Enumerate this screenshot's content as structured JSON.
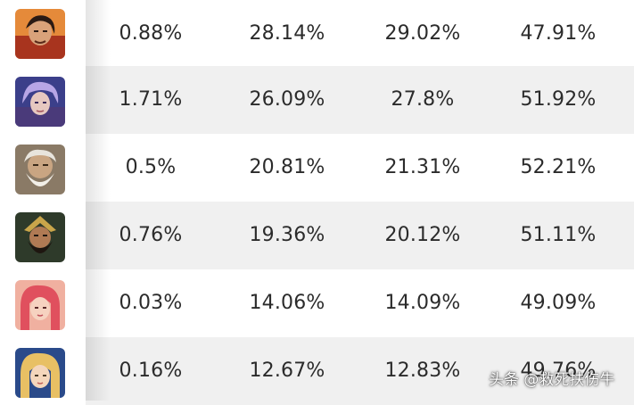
{
  "watermark": "头条 @救死扶伤牛",
  "rows": [
    {
      "avatar_icon": "hero-portrait-red-armor-icon",
      "accent": "#b5482a",
      "values": [
        "0.88%",
        "28.14%",
        "29.02%",
        "47.91%"
      ]
    },
    {
      "avatar_icon": "hero-portrait-purple-mage-icon",
      "accent": "#6b5fb0",
      "values": [
        "1.71%",
        "26.09%",
        "27.8%",
        "51.92%"
      ]
    },
    {
      "avatar_icon": "hero-portrait-white-beard-icon",
      "accent": "#b9b2a6",
      "values": [
        "0.5%",
        "20.81%",
        "21.31%",
        "52.21%"
      ]
    },
    {
      "avatar_icon": "hero-portrait-bearded-warrior-icon",
      "accent": "#6a5a2e",
      "values": [
        "0.76%",
        "19.36%",
        "20.12%",
        "51.11%"
      ]
    },
    {
      "avatar_icon": "hero-portrait-pink-hair-icon",
      "accent": "#e0667a",
      "values": [
        "0.03%",
        "14.06%",
        "14.09%",
        "49.09%"
      ]
    },
    {
      "avatar_icon": "hero-portrait-blonde-hair-icon",
      "accent": "#d6a64a",
      "values": [
        "0.16%",
        "12.67%",
        "12.83%",
        "49.76%"
      ]
    }
  ]
}
